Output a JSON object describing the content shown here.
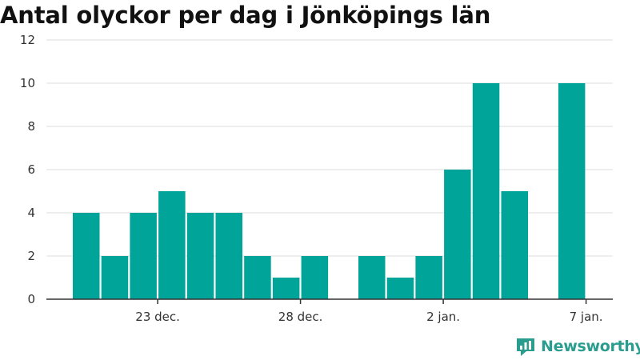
{
  "chart_data": {
    "type": "bar",
    "title": "Antal olyckor per dag i Jönköpings län",
    "xlabel": "",
    "ylabel": "",
    "x": [
      0,
      1,
      2,
      3,
      4,
      5,
      6,
      7,
      8,
      9,
      10,
      11,
      12,
      13,
      14,
      15,
      16,
      17
    ],
    "dates": [
      "2020-12-20",
      "2020-12-21",
      "2020-12-22",
      "2020-12-23",
      "2020-12-24",
      "2020-12-25",
      "2020-12-26",
      "2020-12-27",
      "2020-12-28",
      "2020-12-29",
      "2020-12-30",
      "2020-12-31",
      "2021-01-01",
      "2021-01-02",
      "2021-01-03",
      "2021-01-04",
      "2021-01-05",
      "2021-01-06"
    ],
    "values": [
      4,
      2,
      4,
      5,
      4,
      4,
      2,
      1,
      2,
      0,
      2,
      1,
      2,
      6,
      10,
      5,
      0,
      10
    ],
    "ylim": [
      0,
      12
    ],
    "yticks": [
      0,
      2,
      4,
      6,
      8,
      10,
      12
    ],
    "xticks": [
      {
        "pos": 3,
        "label": "23 dec."
      },
      {
        "pos": 8,
        "label": "28 dec."
      },
      {
        "pos": 13,
        "label": "2 jan."
      },
      {
        "pos": 18,
        "label": "7 jan."
      }
    ],
    "grid": true,
    "bar_color": "#00a499"
  },
  "brand": {
    "name": "Newsworthy"
  }
}
